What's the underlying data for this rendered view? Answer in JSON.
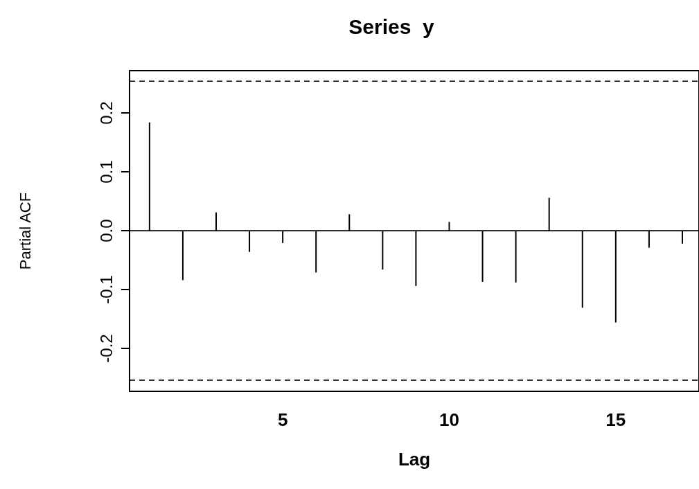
{
  "chart_data": {
    "type": "bar",
    "title": "Series  y",
    "xlabel": "Lag",
    "ylabel": "Partial ACF",
    "x": [
      1,
      2,
      3,
      4,
      5,
      6,
      7,
      8,
      9,
      10,
      11,
      12,
      13,
      14,
      15,
      16,
      17
    ],
    "values": [
      0.184,
      -0.084,
      0.031,
      -0.036,
      -0.021,
      -0.071,
      0.028,
      -0.066,
      -0.094,
      0.015,
      -0.087,
      -0.088,
      0.056,
      -0.131,
      -0.156,
      -0.029,
      -0.022
    ],
    "color": "#000000",
    "xlim": [
      0.4,
      17.5
    ],
    "xticks": [
      5,
      10,
      15
    ],
    "ylim": [
      -0.273,
      0.272
    ],
    "yticks": [
      -0.2,
      -0.1,
      {
        "value": 0,
        "label": "0.0"
      },
      0.1,
      0.2
    ],
    "ref_lines": [
      {
        "axis": "y",
        "value": 0.254,
        "line_style": "dashed",
        "color": "#000000"
      },
      {
        "axis": "y",
        "value": -0.254,
        "line_style": "dashed",
        "color": "#000000"
      },
      {
        "axis": "y",
        "value": 0,
        "line_style": "solid",
        "color": "#000000"
      }
    ],
    "grid": false
  }
}
